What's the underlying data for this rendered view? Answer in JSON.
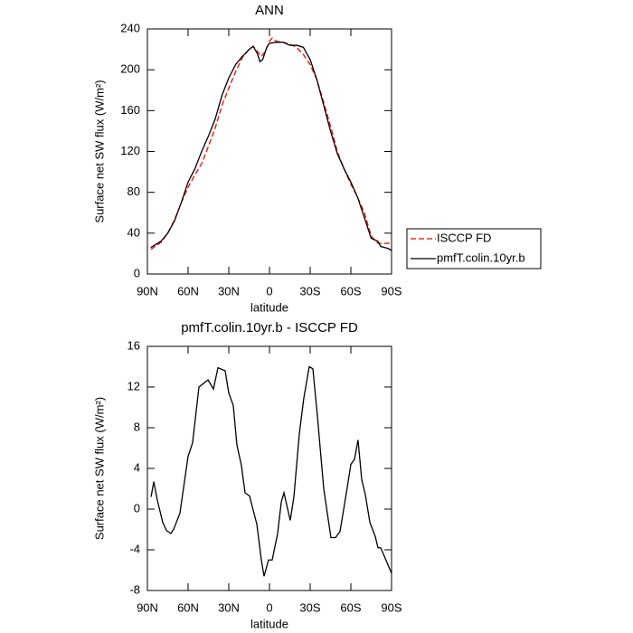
{
  "chart_data": [
    {
      "type": "line",
      "title": "ANN",
      "xlabel": "latitude",
      "ylabel": "Surface net SW flux (W/m²)",
      "xlim": [
        90,
        -90
      ],
      "xticks": [
        {
          "value": 90,
          "label": "90N"
        },
        {
          "value": 60,
          "label": "60N"
        },
        {
          "value": 30,
          "label": "30N"
        },
        0,
        {
          "value": -30,
          "label": "30S"
        },
        {
          "value": -60,
          "label": "60S"
        },
        {
          "value": -90,
          "label": "90S"
        }
      ],
      "ylim": [
        0,
        240
      ],
      "yticks": [
        0,
        40,
        80,
        120,
        160,
        200,
        240
      ],
      "legend": "right",
      "series": [
        {
          "name": "ISCCP FD",
          "color": "#ff0000",
          "linestyle": "dashed",
          "x": [
            87.5,
            80,
            75,
            70,
            65,
            60,
            55,
            50,
            45,
            40,
            35,
            30,
            25,
            20,
            15,
            12,
            9,
            6,
            3,
            0,
            -2,
            -5,
            -10,
            -15,
            -20,
            -25,
            -30,
            -35,
            -40,
            -45,
            -50,
            -55,
            -60,
            -65,
            -70,
            -75,
            -80,
            -85,
            -90
          ],
          "values": [
            24,
            31,
            40,
            53,
            70,
            85,
            97,
            108,
            125,
            143,
            165,
            182,
            198,
            212,
            220,
            223,
            218,
            213,
            218,
            228,
            231,
            228,
            227,
            225,
            222,
            215,
            205,
            190,
            168,
            145,
            120,
            103,
            88,
            75,
            60,
            37,
            30,
            30,
            30
          ]
        },
        {
          "name": "pmfT.colin.10yr.b",
          "color": "#000000",
          "linestyle": "solid",
          "x": [
            87.5,
            80,
            75,
            70,
            65,
            60,
            55,
            50,
            45,
            40,
            35,
            30,
            25,
            20,
            15,
            12,
            9,
            7,
            5,
            2,
            0,
            -5,
            -10,
            -15,
            -20,
            -25,
            -30,
            -35,
            -40,
            -45,
            -50,
            -55,
            -60,
            -65,
            -70,
            -75,
            -80,
            -82,
            -87.5,
            -90
          ],
          "values": [
            26,
            32,
            40,
            52,
            70,
            90,
            103,
            120,
            135,
            152,
            175,
            192,
            205,
            213,
            220,
            223,
            216,
            208,
            210,
            222,
            226,
            227,
            227,
            224,
            224,
            222,
            210,
            190,
            165,
            140,
            118,
            103,
            90,
            75,
            55,
            35,
            32,
            27,
            25,
            23
          ]
        }
      ]
    },
    {
      "type": "line",
      "title": "pmfT.colin.10yr.b - ISCCP FD",
      "xlabel": "latitude",
      "ylabel": "Surface net SW flux (W/m²)",
      "xlim": [
        90,
        -90
      ],
      "xticks": [
        {
          "value": 90,
          "label": "90N"
        },
        {
          "value": 60,
          "label": "60N"
        },
        {
          "value": 30,
          "label": "30N"
        },
        0,
        {
          "value": -30,
          "label": "30S"
        },
        {
          "value": -60,
          "label": "60S"
        },
        {
          "value": -90,
          "label": "90S"
        }
      ],
      "ylim": [
        -8,
        16
      ],
      "yticks": [
        -8,
        -4,
        0,
        4,
        8,
        12,
        16
      ],
      "series": [
        {
          "color": "#000000",
          "linestyle": "solid",
          "x": [
            87.3,
            85.3,
            82.7,
            78.7,
            76,
            72.7,
            70.7,
            66,
            60,
            56.7,
            52,
            45.3,
            41.3,
            38,
            32.7,
            30,
            26.7,
            24,
            20.7,
            18,
            14.7,
            9.3,
            6,
            4,
            0.7,
            -2,
            -6,
            -8.7,
            -10.7,
            -15.3,
            -18,
            -22,
            -25.3,
            -29.3,
            -32,
            -35.3,
            -40,
            -45.3,
            -48.7,
            -52,
            -56.7,
            -60,
            -62.7,
            -65.3,
            -68,
            -70.7,
            -74,
            -78,
            -80,
            -82,
            -90
          ],
          "values": [
            1.2,
            2.7,
            0.9,
            -1.3,
            -2.1,
            -2.4,
            -2,
            -0.4,
            5.2,
            6.5,
            12,
            12.7,
            11.8,
            13.9,
            13.6,
            11.4,
            10.2,
            6.3,
            4.3,
            1.6,
            1.3,
            -1.5,
            -5,
            -6.6,
            -5,
            -5,
            -2.4,
            0.7,
            1.6,
            -1.1,
            1.2,
            7.4,
            10.9,
            14,
            13.8,
            9.2,
            2,
            -2.8,
            -2.8,
            -2.2,
            1.6,
            4.4,
            4.9,
            6.8,
            2.9,
            1.4,
            -1.3,
            -2.7,
            -3.8,
            -3.8,
            -6.3
          ]
        }
      ]
    }
  ]
}
